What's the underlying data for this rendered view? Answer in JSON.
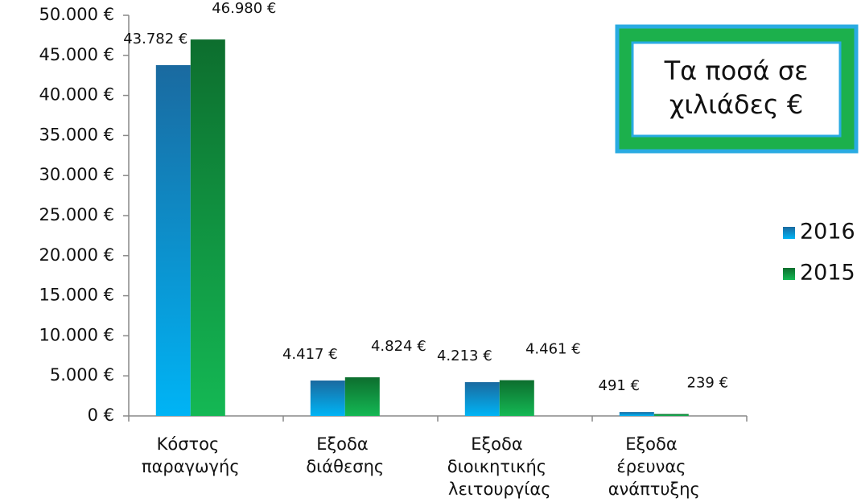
{
  "chart_data": {
    "type": "bar",
    "categories": [
      "Κόστος παραγωγής",
      "Εξοδα διάθεσης",
      "Εξοδα διοικητικής λειτουργίας",
      "Εξοδα έρευνας ανάπτυξης"
    ],
    "series": [
      {
        "name": "2016",
        "color": "#1a8fd0",
        "values": [
          43782,
          4417,
          4213,
          491
        ],
        "value_labels": [
          "43.782 €",
          "4.417 €",
          "4.213 €",
          "491 €"
        ]
      },
      {
        "name": "2015",
        "color": "#12a048",
        "values": [
          46980,
          4824,
          4461,
          239
        ],
        "value_labels": [
          "46.980 €",
          "4.824 €",
          "4.461 €",
          "239 €"
        ]
      }
    ],
    "ylim": [
      0,
      50000
    ],
    "yticks": [
      {
        "value": 0,
        "label": "0 €"
      },
      {
        "value": 5000,
        "label": "5.000 €"
      },
      {
        "value": 10000,
        "label": "10.000 €"
      },
      {
        "value": 15000,
        "label": "15.000 €"
      },
      {
        "value": 20000,
        "label": "20.000 €"
      },
      {
        "value": 25000,
        "label": "25.000 €"
      },
      {
        "value": 30000,
        "label": "30.000 €"
      },
      {
        "value": 35000,
        "label": "35.000 €"
      },
      {
        "value": 40000,
        "label": "40.000 €"
      },
      {
        "value": 45000,
        "label": "45.000 €"
      },
      {
        "value": 50000,
        "label": "50.000 €"
      }
    ],
    "annotation": [
      "Τα ποσά σε",
      "χιλιάδες €"
    ],
    "legend": "right"
  }
}
